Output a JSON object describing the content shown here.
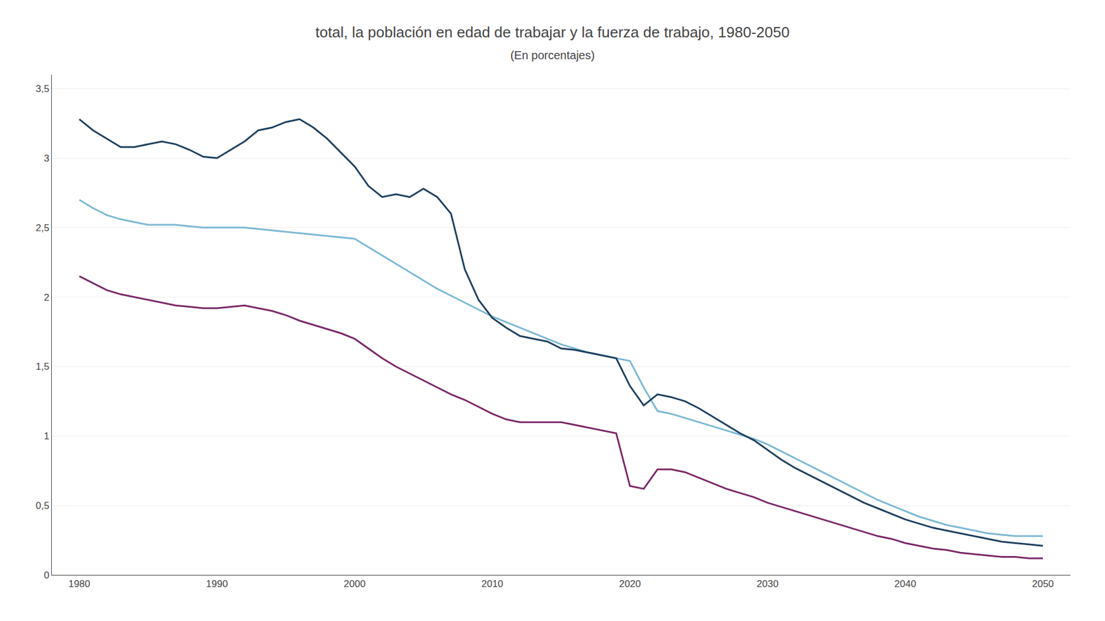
{
  "chart_data": {
    "type": "line",
    "title": "total, la población en edad de trabajar y la fuerza de trabajo, 1980-2050",
    "subtitle": "(En porcentajes)",
    "x": [
      1980,
      1981,
      1982,
      1983,
      1984,
      1985,
      1986,
      1987,
      1988,
      1989,
      1990,
      1991,
      1992,
      1993,
      1994,
      1995,
      1996,
      1997,
      1998,
      1999,
      2000,
      2001,
      2002,
      2003,
      2004,
      2005,
      2006,
      2007,
      2008,
      2009,
      2010,
      2011,
      2012,
      2013,
      2014,
      2015,
      2016,
      2017,
      2018,
      2019,
      2020,
      2021,
      2022,
      2023,
      2024,
      2025,
      2026,
      2027,
      2028,
      2029,
      2030,
      2031,
      2032,
      2033,
      2034,
      2035,
      2036,
      2037,
      2038,
      2039,
      2040,
      2041,
      2042,
      2043,
      2044,
      2045,
      2046,
      2047,
      2048,
      2049,
      2050
    ],
    "series": [
      {
        "color": "#7BB8D4",
        "values": [
          2.7,
          2.64,
          2.59,
          2.56,
          2.54,
          2.52,
          2.52,
          2.52,
          2.51,
          2.5,
          2.5,
          2.5,
          2.5,
          2.49,
          2.48,
          2.47,
          2.46,
          2.45,
          2.44,
          2.43,
          2.42,
          2.36,
          2.3,
          2.24,
          2.18,
          2.12,
          2.06,
          2.01,
          1.96,
          1.91,
          1.86,
          1.82,
          1.78,
          1.74,
          1.7,
          1.66,
          1.63,
          1.6,
          1.58,
          1.56,
          1.54,
          1.35,
          1.18,
          1.16,
          1.13,
          1.1,
          1.07,
          1.04,
          1.01,
          0.98,
          0.94,
          0.89,
          0.84,
          0.79,
          0.74,
          0.69,
          0.64,
          0.59,
          0.54,
          0.5,
          0.46,
          0.42,
          0.39,
          0.36,
          0.34,
          0.32,
          0.3,
          0.29,
          0.28,
          0.28,
          0.28
        ]
      },
      {
        "color": "#7B2768",
        "values": [
          2.15,
          2.1,
          2.05,
          2.02,
          2.0,
          1.98,
          1.96,
          1.94,
          1.93,
          1.92,
          1.92,
          1.93,
          1.94,
          1.92,
          1.9,
          1.87,
          1.83,
          1.8,
          1.77,
          1.74,
          1.7,
          1.63,
          1.56,
          1.5,
          1.45,
          1.4,
          1.35,
          1.3,
          1.26,
          1.21,
          1.16,
          1.12,
          1.1,
          1.1,
          1.1,
          1.1,
          1.08,
          1.06,
          1.04,
          1.02,
          0.64,
          0.62,
          0.76,
          0.76,
          0.74,
          0.7,
          0.66,
          0.62,
          0.59,
          0.56,
          0.52,
          0.49,
          0.46,
          0.43,
          0.4,
          0.37,
          0.34,
          0.31,
          0.28,
          0.26,
          0.23,
          0.21,
          0.19,
          0.18,
          0.16,
          0.15,
          0.14,
          0.13,
          0.13,
          0.12,
          0.12
        ]
      },
      {
        "color": "#1C3F5E",
        "values": [
          3.28,
          3.2,
          3.14,
          3.08,
          3.08,
          3.1,
          3.12,
          3.1,
          3.06,
          3.01,
          3.0,
          3.06,
          3.12,
          3.2,
          3.22,
          3.26,
          3.28,
          3.22,
          3.14,
          3.04,
          2.94,
          2.8,
          2.72,
          2.74,
          2.72,
          2.78,
          2.72,
          2.6,
          2.2,
          1.98,
          1.85,
          1.78,
          1.72,
          1.7,
          1.68,
          1.63,
          1.62,
          1.6,
          1.58,
          1.56,
          1.36,
          1.22,
          1.3,
          1.28,
          1.25,
          1.2,
          1.14,
          1.08,
          1.02,
          0.97,
          0.9,
          0.83,
          0.77,
          0.72,
          0.67,
          0.62,
          0.57,
          0.52,
          0.48,
          0.44,
          0.4,
          0.37,
          0.34,
          0.32,
          0.3,
          0.28,
          0.26,
          0.24,
          0.23,
          0.22,
          0.21
        ]
      }
    ],
    "xlim": [
      1978,
      2052
    ],
    "xticks": [
      1980,
      1990,
      2000,
      2010,
      2020,
      2030,
      2040,
      2050
    ],
    "ylim": [
      0,
      3.6
    ],
    "yticks": [
      0,
      {
        "value": 0.5,
        "label": "0,5"
      },
      1,
      {
        "value": 1.5,
        "label": "1,5"
      },
      2,
      {
        "value": 2.5,
        "label": "2,5"
      },
      3,
      {
        "value": 3.5,
        "label": "3,5"
      }
    ],
    "grid": true
  }
}
